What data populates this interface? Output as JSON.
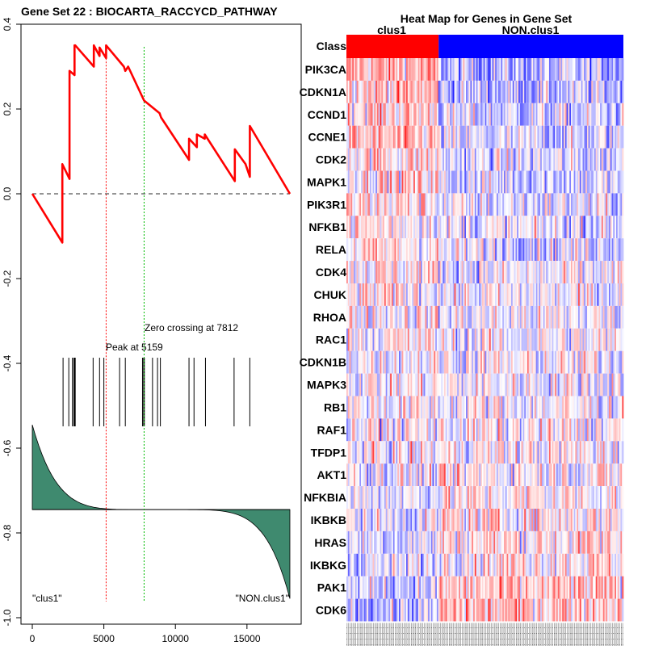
{
  "chart_data": [
    {
      "type": "line",
      "title": "Gene Set  22 : BIOCARTA_RACCYCD_PATHWAY",
      "xlabel": "",
      "ylabel": "",
      "xlim": [
        0,
        18000
      ],
      "ylim": [
        -1.0,
        0.4
      ],
      "x_ticks": [
        0,
        5000,
        10000,
        15000
      ],
      "x_tick_labels": [
        "0",
        "5000",
        "10000",
        "15000"
      ],
      "y_ticks": [
        -1.0,
        -0.8,
        -0.6,
        -0.4,
        -0.2,
        0.0,
        0.2,
        0.4
      ],
      "y_tick_labels": [
        "-1.0",
        "-0.8",
        "-0.6",
        "-0.4",
        "-0.2",
        "0.0",
        "0.2",
        "0.4"
      ],
      "series": [
        {
          "name": "running enrichment score",
          "color": "#ff0000",
          "x": [
            0,
            2100,
            2101,
            2600,
            2601,
            2950,
            2951,
            3000,
            3001,
            4300,
            4301,
            4700,
            4701,
            5159,
            5160,
            6400,
            6500,
            6700,
            7812,
            8900,
            9000,
            10950,
            10951,
            11500,
            11501,
            12050,
            12051,
            14150,
            14151,
            14900,
            14901,
            15200,
            15201,
            18000
          ],
          "values": [
            0.0,
            -0.115,
            0.07,
            0.035,
            0.29,
            0.28,
            0.35,
            0.35,
            0.35,
            0.3,
            0.35,
            0.325,
            0.345,
            0.32,
            0.35,
            0.3,
            0.29,
            0.3,
            0.22,
            0.19,
            0.18,
            0.08,
            0.13,
            0.11,
            0.14,
            0.13,
            0.14,
            0.03,
            0.105,
            0.07,
            0.07,
            0.04,
            0.16,
            0.0
          ]
        }
      ],
      "zero_line": {
        "value": 0.0,
        "style": "dashed",
        "color": "#555555"
      },
      "hit_positions": [
        2150,
        2550,
        2800,
        2900,
        2960,
        3000,
        4250,
        4700,
        5000,
        6100,
        6500,
        7700,
        7780,
        7830,
        8400,
        8750,
        8950,
        10950,
        11300,
        12100,
        14100,
        15200
      ],
      "ranked_metric": {
        "fill_color": "#3f8a6f",
        "baseline": -0.745,
        "start": -0.545,
        "end": -0.955
      },
      "annotations": {
        "peak_label": "Peak at 5159",
        "peak_x": 5159,
        "peak_color": "#ff0000",
        "zero_crossing_label": "Zero crossing at 7812",
        "zero_crossing_x": 7812,
        "zero_crossing_color": "#00bb00",
        "left_class_label": "\"clus1\"",
        "right_class_label": "\"NON.clus1\""
      }
    },
    {
      "type": "heatmap",
      "title": "Heat Map for Genes in Gene Set",
      "class_row_label": "Class",
      "class_labels": [
        "clus1",
        "NON.clus1"
      ],
      "class_colors": [
        "#ff0000",
        "#0000ff"
      ],
      "class_split_fraction": 0.333,
      "genes": [
        "PIK3CA",
        "CDKN1A",
        "CCND1",
        "CCNE1",
        "CDK2",
        "MAPK1",
        "PIK3R1",
        "NFKB1",
        "RELA",
        "CDK4",
        "CHUK",
        "RHOA",
        "RAC1",
        "CDKN1B",
        "MAPK3",
        "RB1",
        "RAF1",
        "TFDP1",
        "AKT1",
        "NFKBIA",
        "IKBKB",
        "HRAS",
        "IKBKG",
        "PAK1",
        "CDK6"
      ],
      "expression_trend": [
        0.3,
        0.26,
        0.2,
        0.2,
        0.16,
        0.16,
        0.12,
        0.1,
        0.1,
        0.08,
        0.06,
        0.05,
        0.04,
        0.02,
        0.02,
        0.01,
        0.0,
        -0.02,
        -0.04,
        -0.06,
        -0.1,
        -0.12,
        -0.14,
        -0.18,
        -0.26
      ]
    }
  ]
}
